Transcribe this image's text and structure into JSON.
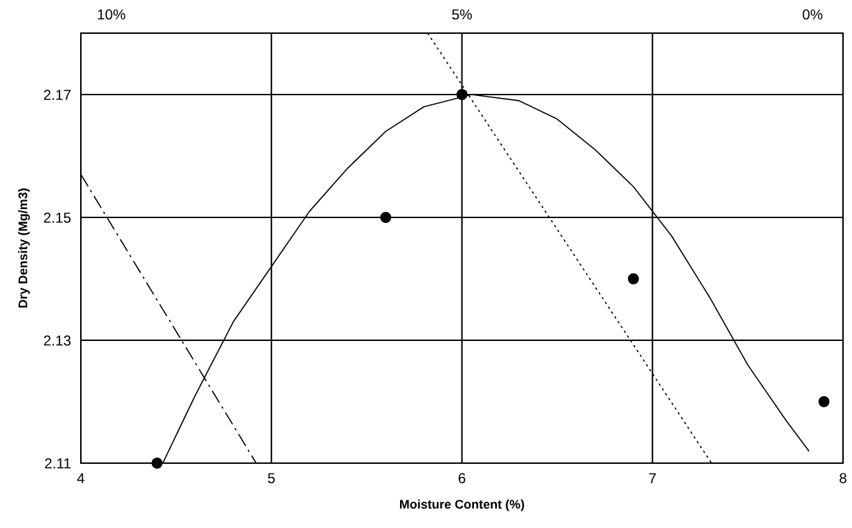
{
  "chart_data": {
    "type": "scatter",
    "xlabel": "Moisture Content (%)",
    "ylabel": "Dry Density (Mg/m3)",
    "xlim": [
      4,
      8
    ],
    "xticks": [
      4,
      5,
      6,
      7,
      8
    ],
    "ylim": [
      2.11,
      2.18
    ],
    "yticks": [
      2.11,
      2.13,
      2.15,
      2.17
    ],
    "grid": true,
    "legend": false,
    "series": [
      {
        "type": "scatter",
        "color": "#000000",
        "marker": "circle",
        "x": [
          4.4,
          5.6,
          6.0,
          6.9,
          7.9
        ],
        "values": [
          2.11,
          2.15,
          2.17,
          2.14,
          2.12
        ]
      },
      {
        "type": "line",
        "color": "#000000",
        "line_style": "solid",
        "x": [
          4.43,
          4.6,
          4.8,
          5.0,
          5.2,
          5.4,
          5.6,
          5.8,
          6.05,
          6.3,
          6.5,
          6.7,
          6.9,
          7.1,
          7.3,
          7.5,
          7.7,
          7.82
        ],
        "values": [
          2.11,
          2.121,
          2.133,
          2.142,
          2.151,
          2.158,
          2.164,
          2.168,
          2.17,
          2.169,
          2.166,
          2.161,
          2.155,
          2.147,
          2.137,
          2.126,
          2.117,
          2.112
        ]
      },
      {
        "type": "line",
        "color": "#000000",
        "line_style": "dotted",
        "x": [
          5.82,
          7.31
        ],
        "values": [
          2.18,
          2.11
        ]
      },
      {
        "type": "line",
        "color": "#000000",
        "line_style": "dashdot",
        "x": [
          4.0,
          4.92
        ],
        "values": [
          2.157,
          2.11
        ]
      }
    ],
    "annotations": [
      "10%",
      "5%",
      "0%"
    ]
  }
}
